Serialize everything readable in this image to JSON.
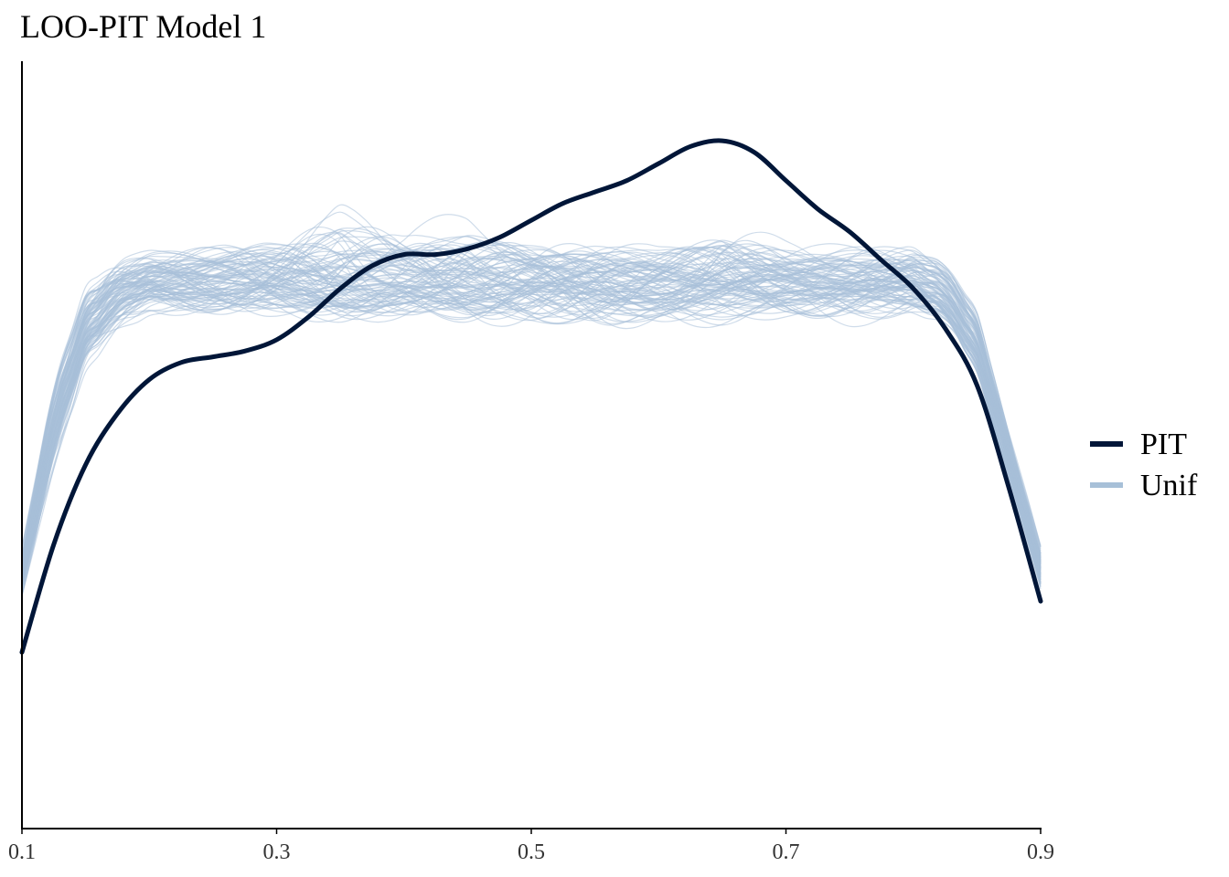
{
  "colors": {
    "pit": "#011638",
    "unif": "#a7c0d8",
    "axis": "#000000",
    "tick_text": "#333333"
  },
  "chart_data": {
    "type": "line",
    "title": "LOO-PIT Model 1",
    "xlabel": "",
    "ylabel": "",
    "xlim": [
      0.1,
      0.9
    ],
    "ylim": [
      0,
      1.35
    ],
    "x_ticks": [
      "0.1",
      "0.3",
      "0.5",
      "0.7",
      "0.9"
    ],
    "y_axis_labels_shown": false,
    "grid": false,
    "legend_position": "right",
    "legend": [
      "PIT",
      "Unif"
    ],
    "series": [
      {
        "name": "PIT",
        "x": [
          0.1,
          0.125,
          0.15,
          0.175,
          0.2,
          0.225,
          0.25,
          0.275,
          0.3,
          0.325,
          0.35,
          0.375,
          0.4,
          0.425,
          0.45,
          0.475,
          0.5,
          0.525,
          0.55,
          0.575,
          0.6,
          0.625,
          0.65,
          0.675,
          0.7,
          0.725,
          0.75,
          0.775,
          0.8,
          0.825,
          0.85,
          0.875,
          0.9
        ],
        "values": [
          0.31,
          0.5,
          0.64,
          0.73,
          0.79,
          0.82,
          0.83,
          0.84,
          0.86,
          0.9,
          0.95,
          0.99,
          1.01,
          1.01,
          1.02,
          1.04,
          1.07,
          1.1,
          1.12,
          1.14,
          1.17,
          1.2,
          1.21,
          1.19,
          1.14,
          1.09,
          1.05,
          1.0,
          0.95,
          0.88,
          0.78,
          0.6,
          0.4
        ]
      }
    ],
    "reference_band": {
      "name": "Unif",
      "description": "100 draws of uniform LOO-PIT densities",
      "x": [
        0.1,
        0.125,
        0.15,
        0.175,
        0.2,
        0.25,
        0.3,
        0.35,
        0.4,
        0.45,
        0.5,
        0.55,
        0.6,
        0.65,
        0.7,
        0.75,
        0.8,
        0.825,
        0.85,
        0.875,
        0.9
      ],
      "mean": [
        0.45,
        0.72,
        0.88,
        0.94,
        0.96,
        0.96,
        0.96,
        0.96,
        0.96,
        0.96,
        0.96,
        0.96,
        0.96,
        0.96,
        0.96,
        0.96,
        0.96,
        0.94,
        0.85,
        0.66,
        0.46
      ],
      "range_low": [
        0.39,
        0.6,
        0.78,
        0.85,
        0.88,
        0.88,
        0.88,
        0.87,
        0.87,
        0.86,
        0.86,
        0.86,
        0.86,
        0.86,
        0.87,
        0.87,
        0.88,
        0.87,
        0.78,
        0.6,
        0.4
      ],
      "range_high": [
        0.51,
        0.82,
        0.98,
        1.03,
        1.04,
        1.05,
        1.07,
        1.12,
        1.08,
        1.1,
        1.06,
        1.06,
        1.05,
        1.08,
        1.05,
        1.05,
        1.05,
        1.02,
        0.93,
        0.72,
        0.52
      ]
    }
  }
}
